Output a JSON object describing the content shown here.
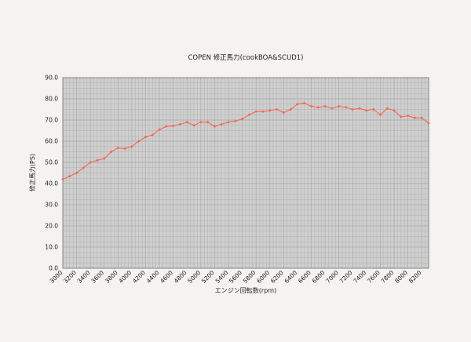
{
  "colors": {
    "page_bg": "#f4f3f1",
    "plot_bg": "#cfcfcf",
    "grid": "#a9a9a9",
    "series": "#f06a58"
  },
  "chart_data": {
    "type": "line",
    "title": "COPEN 修正馬力(cookBOA&SCUD1)",
    "xlabel": "エンジン回転数(rpm)",
    "ylabel": "修正馬力(PS)",
    "xlim": [
      3000,
      8300
    ],
    "ylim": [
      0,
      90
    ],
    "grid": true,
    "x_ticks": [
      "3000",
      "3200",
      "3400",
      "3600",
      "3800",
      "4000",
      "4200",
      "4400",
      "4600",
      "4800",
      "5000",
      "5200",
      "5400",
      "5600",
      "5800",
      "6000",
      "6200",
      "6400",
      "6600",
      "6800",
      "7000",
      "7200",
      "7400",
      "7600",
      "7800",
      "8000",
      "8200"
    ],
    "y_ticks": [
      "0.0",
      "10.0",
      "20.0",
      "30.0",
      "40.0",
      "50.0",
      "60.0",
      "70.0",
      "80.0",
      "90.0"
    ],
    "series": [
      {
        "name": "",
        "color": "#f06a58",
        "x": [
          3000,
          3100,
          3200,
          3300,
          3400,
          3500,
          3600,
          3700,
          3800,
          3900,
          4000,
          4100,
          4200,
          4300,
          4400,
          4500,
          4600,
          4700,
          4800,
          4900,
          5000,
          5100,
          5200,
          5300,
          5400,
          5500,
          5600,
          5700,
          5800,
          5900,
          6000,
          6100,
          6200,
          6300,
          6400,
          6500,
          6600,
          6700,
          6800,
          6900,
          7000,
          7100,
          7200,
          7300,
          7400,
          7500,
          7600,
          7700,
          7800,
          7900,
          8000,
          8100,
          8200,
          8300
        ],
        "values": [
          42.0,
          43.5,
          45.0,
          47.5,
          50.0,
          51.0,
          51.8,
          55.0,
          56.8,
          56.5,
          57.5,
          60.0,
          62.0,
          63.0,
          65.5,
          67.0,
          67.2,
          68.0,
          69.0,
          67.5,
          69.0,
          69.0,
          67.0,
          68.0,
          69.0,
          69.5,
          70.5,
          72.5,
          74.0,
          74.0,
          74.5,
          75.0,
          73.5,
          75.0,
          77.5,
          78.0,
          76.5,
          76.0,
          76.5,
          75.5,
          76.5,
          76.0,
          75.0,
          75.5,
          74.5,
          75.0,
          72.5,
          75.5,
          74.5,
          71.5,
          72.0,
          71.0,
          71.0,
          68.5
        ]
      }
    ]
  }
}
